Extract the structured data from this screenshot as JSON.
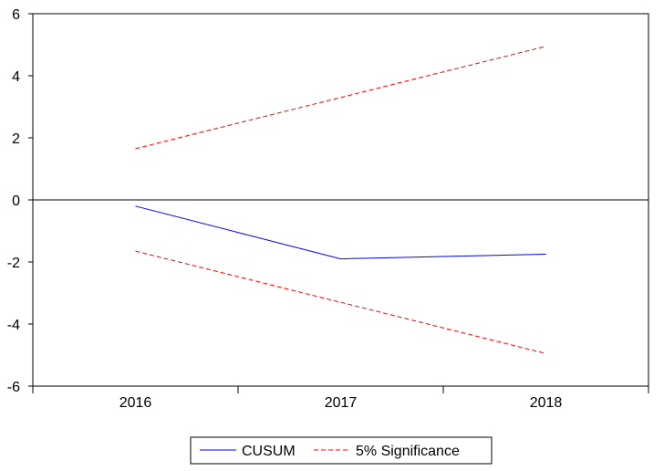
{
  "chart_data": {
    "type": "line",
    "title": "",
    "xlabel": "",
    "ylabel": "",
    "categories": [
      "2016",
      "2017",
      "2018"
    ],
    "ylim": [
      -6,
      6
    ],
    "yticks": [
      "6",
      "4",
      "2",
      "0",
      "-2",
      "-4",
      "-6"
    ],
    "ytick_values": [
      6,
      4,
      2,
      0,
      -2,
      -4,
      -6
    ],
    "zero_line": true,
    "grid": false,
    "legend_position": "bottom-center",
    "series": [
      {
        "name": "CUSUM",
        "values": [
          -0.2,
          -1.9,
          -1.75
        ],
        "color": "#0000ff",
        "style": "solid"
      },
      {
        "name": "5% Significance",
        "values": [
          1.65,
          3.3,
          4.95
        ],
        "color": "#ff0000",
        "style": "dashed"
      },
      {
        "values": [
          -1.65,
          -3.3,
          -4.95
        ],
        "color": "#ff0000",
        "style": "dashed"
      }
    ]
  },
  "legend": {
    "items": [
      {
        "label": "CUSUM",
        "color": "#0000ff",
        "style": "solid"
      },
      {
        "label": "5% Significance",
        "color": "#ff0000",
        "style": "dashed"
      }
    ]
  }
}
